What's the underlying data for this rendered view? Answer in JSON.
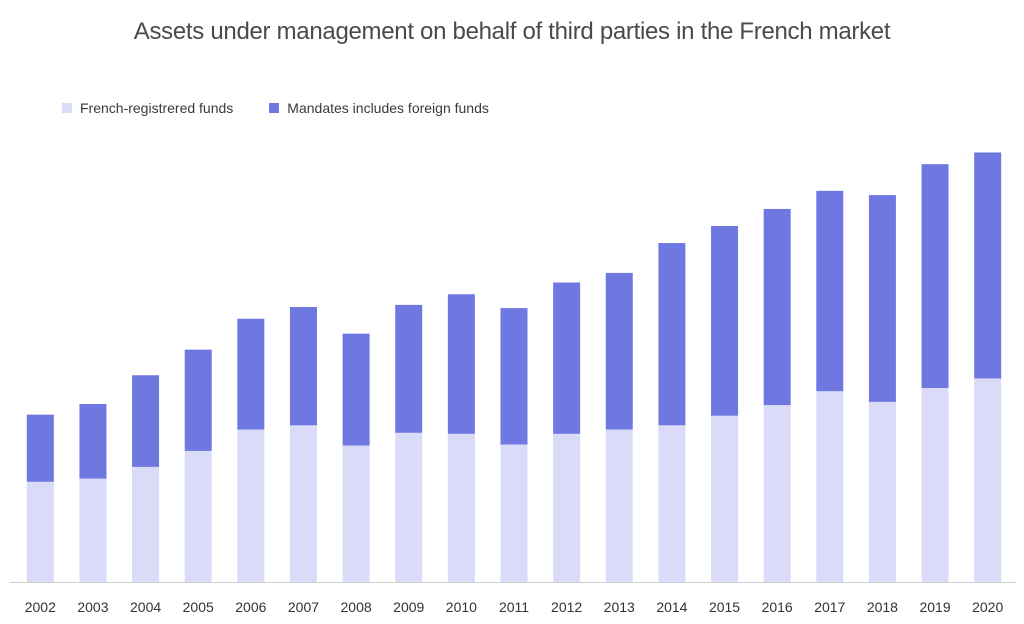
{
  "chart_data": {
    "type": "bar",
    "stacked": true,
    "title": "Assets under management on behalf of third parties in the French market",
    "xlabel": "",
    "ylabel": "",
    "categories": [
      "2002",
      "2003",
      "2004",
      "2005",
      "2006",
      "2007",
      "2008",
      "2009",
      "2010",
      "2011",
      "2012",
      "2013",
      "2014",
      "2015",
      "2016",
      "2017",
      "2018",
      "2019",
      "2020"
    ],
    "series": [
      {
        "name": "French-registrered funds",
        "color": "#d9dbf8",
        "values": [
          94,
          97,
          108,
          123,
          143,
          147,
          128,
          140,
          139,
          129,
          139,
          143,
          147,
          156,
          166,
          179,
          169,
          182,
          191
        ]
      },
      {
        "name": "Mandates includes foreign funds",
        "color": "#6f78e0",
        "values": [
          63,
          70,
          86,
          95,
          104,
          111,
          105,
          120,
          131,
          128,
          142,
          147,
          171,
          178,
          184,
          188,
          194,
          210,
          212
        ]
      }
    ],
    "ylim": [
      0,
      410
    ],
    "y_axis_visible": false,
    "grid": false,
    "legend_position": "top-left"
  }
}
